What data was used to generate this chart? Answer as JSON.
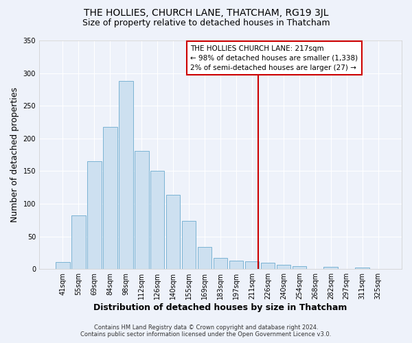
{
  "title": "THE HOLLIES, CHURCH LANE, THATCHAM, RG19 3JL",
  "subtitle": "Size of property relative to detached houses in Thatcham",
  "xlabel": "Distribution of detached houses by size in Thatcham",
  "ylabel": "Number of detached properties",
  "bar_labels": [
    "41sqm",
    "55sqm",
    "69sqm",
    "84sqm",
    "98sqm",
    "112sqm",
    "126sqm",
    "140sqm",
    "155sqm",
    "169sqm",
    "183sqm",
    "197sqm",
    "211sqm",
    "226sqm",
    "240sqm",
    "254sqm",
    "268sqm",
    "282sqm",
    "297sqm",
    "311sqm",
    "325sqm"
  ],
  "bar_values": [
    11,
    82,
    165,
    218,
    288,
    181,
    150,
    114,
    74,
    34,
    17,
    13,
    12,
    10,
    7,
    4,
    0,
    3,
    0,
    2,
    0
  ],
  "bar_color": "#cde0f0",
  "bar_edge_color": "#7ab3d3",
  "ylim": [
    0,
    350
  ],
  "yticks": [
    0,
    50,
    100,
    150,
    200,
    250,
    300,
    350
  ],
  "vline_color": "#cc0000",
  "annotation_title": "THE HOLLIES CHURCH LANE: 217sqm",
  "annotation_line1": "← 98% of detached houses are smaller (1,338)",
  "annotation_line2": "2% of semi-detached houses are larger (27) →",
  "footnote1": "Contains HM Land Registry data © Crown copyright and database right 2024.",
  "footnote2": "Contains public sector information licensed under the Open Government Licence v3.0.",
  "bg_color": "#eef2fa",
  "grid_color": "#ffffff",
  "title_fontsize": 10,
  "subtitle_fontsize": 9,
  "axis_label_fontsize": 9,
  "tick_fontsize": 7,
  "footnote_fontsize": 6
}
